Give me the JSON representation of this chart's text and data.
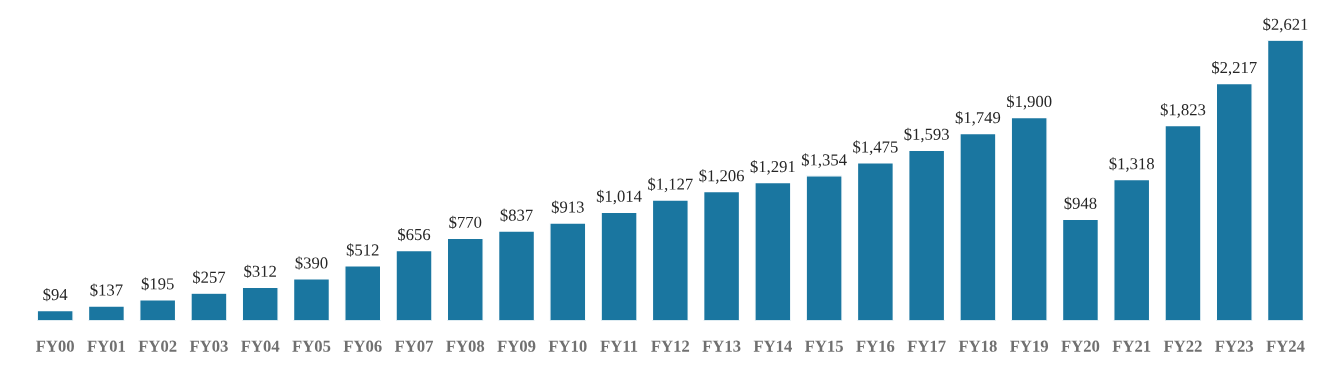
{
  "chart_data": {
    "type": "bar",
    "categories": [
      "FY00",
      "FY01",
      "FY02",
      "FY03",
      "FY04",
      "FY05",
      "FY06",
      "FY07",
      "FY08",
      "FY09",
      "FY10",
      "FY11",
      "FY12",
      "FY13",
      "FY14",
      "FY15",
      "FY16",
      "FY17",
      "FY18",
      "FY19",
      "FY20",
      "FY21",
      "FY22",
      "FY23",
      "FY24"
    ],
    "values": [
      94,
      137,
      195,
      257,
      312,
      390,
      512,
      656,
      770,
      837,
      913,
      1014,
      1127,
      1206,
      1291,
      1354,
      1475,
      1593,
      1749,
      1900,
      948,
      1318,
      1823,
      2217,
      2621
    ],
    "value_labels": [
      "$94",
      "$137",
      "$195",
      "$257",
      "$312",
      "$390",
      "$512",
      "$656",
      "$770",
      "$837",
      "$913",
      "$1,014",
      "$1,127",
      "$1,206",
      "$1,291",
      "$1,354",
      "$1,475",
      "$1,593",
      "$1,749",
      "$1,900",
      "$948",
      "$1,318",
      "$1,823",
      "$2,217",
      "$2,621"
    ],
    "color": "#1a76a0"
  }
}
